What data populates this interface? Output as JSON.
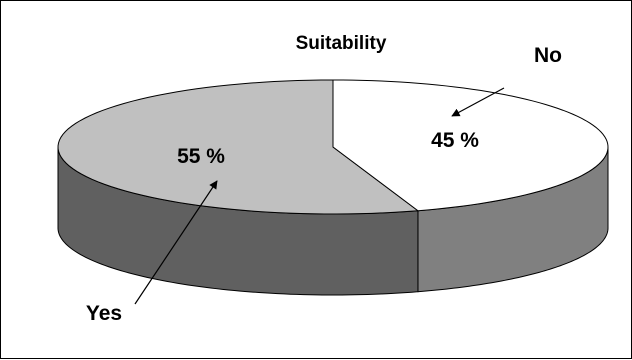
{
  "chart_data": {
    "type": "pie",
    "title": "Suitability",
    "slices": [
      {
        "label": "Yes",
        "value": 55,
        "value_label": "55 %",
        "top_color": "#c0c0c0",
        "side_color": "#606060"
      },
      {
        "label": "No",
        "value": 45,
        "value_label": "45 %",
        "top_color": "#ffffff",
        "side_color": "#808080"
      }
    ],
    "style": "3d-exploded-ellipse",
    "legend": "none"
  }
}
